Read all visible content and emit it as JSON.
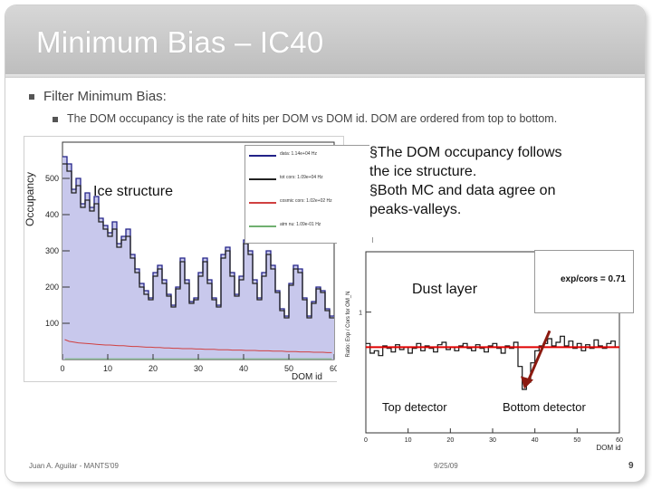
{
  "slide": {
    "title": "Minimum Bias – IC40",
    "bullet1": "Filter Minimum Bias:",
    "bullet2": "The DOM occupancy is the rate of hits per DOM vs DOM id. DOM are ordered from top to bottom.",
    "footer_left": "Juan A. Aguilar - MANTS'09",
    "footer_date": "9/25/09",
    "page_number": "9"
  },
  "annotations": {
    "note_line1": "§The DOM occupancy follows",
    "note_line2": "the ice structure.",
    "note_line3": "§Both MC and data agree on",
    "note_line4": "peaks-valleys.",
    "ice_structure": "Ice structure",
    "dust_layer": "Dust layer",
    "top_detector": "Top detector",
    "bottom_detector": "Bottom detector"
  },
  "colors": {
    "data": "#222288",
    "total_cors": "#222222",
    "cosmic": "#d04040",
    "atmo_nu": "#70b070",
    "fill": "#c8c8ec",
    "ratio_line": "#e00000",
    "arrow": "#8b1a10"
  },
  "chart_data": [
    {
      "type": "line",
      "ylabel": "Occupancy",
      "xlabel": "DOM id",
      "x_ticks": [
        0,
        10,
        20,
        30,
        40,
        50,
        60
      ],
      "y_ticks": [
        100,
        200,
        300,
        400,
        500
      ],
      "xlim": [
        0,
        60
      ],
      "ylim": [
        0,
        600
      ],
      "legend": {
        "placement": "top-right",
        "entries": [
          {
            "label": "data: 1.14e+04 Hz"
          },
          {
            "label": "tot cors: 1.09e+04 Hz"
          },
          {
            "label": "cosmic cors: 1.02e+02 Hz"
          },
          {
            "label": "atm nu: 1.09e-01 Hz"
          }
        ]
      },
      "series": [
        {
          "name": "data",
          "style": "step-filled",
          "values": [
            560,
            540,
            470,
            500,
            430,
            460,
            420,
            450,
            390,
            370,
            350,
            380,
            320,
            340,
            360,
            290,
            250,
            210,
            190,
            170,
            240,
            260,
            220,
            180,
            150,
            200,
            280,
            220,
            160,
            170,
            240,
            280,
            220,
            170,
            150,
            290,
            310,
            240,
            180,
            230,
            330,
            300,
            220,
            170,
            240,
            300,
            260,
            190,
            140,
            120,
            210,
            260,
            250,
            170,
            120,
            160,
            200,
            190,
            140,
            120
          ]
        },
        {
          "name": "tot cors",
          "style": "step",
          "values": [
            540,
            520,
            460,
            480,
            420,
            440,
            410,
            430,
            380,
            360,
            340,
            360,
            310,
            330,
            340,
            280,
            240,
            200,
            180,
            165,
            230,
            250,
            210,
            175,
            145,
            195,
            270,
            210,
            155,
            165,
            230,
            270,
            210,
            165,
            145,
            280,
            300,
            230,
            175,
            220,
            320,
            290,
            210,
            165,
            230,
            290,
            250,
            185,
            135,
            115,
            205,
            250,
            240,
            165,
            115,
            155,
            195,
            185,
            135,
            115
          ]
        },
        {
          "name": "cosmic cors",
          "style": "line",
          "values": [
            55,
            50,
            48,
            46,
            45,
            44,
            43,
            42,
            41,
            40,
            40,
            39,
            38,
            38,
            37,
            36,
            36,
            35,
            34,
            34,
            33,
            33,
            32,
            32,
            31,
            31,
            30,
            30,
            30,
            29,
            29,
            28,
            28,
            28,
            27,
            27,
            27,
            26,
            26,
            26,
            25,
            25,
            25,
            24,
            24,
            24,
            23,
            23,
            23,
            22,
            22,
            22,
            21,
            21,
            21,
            20,
            20,
            20,
            19,
            19
          ]
        },
        {
          "name": "atm nu",
          "style": "line",
          "values": [
            2,
            2,
            2,
            2,
            2,
            2,
            2,
            2,
            2,
            2,
            2,
            2,
            2,
            2,
            2,
            2,
            2,
            2,
            2,
            2,
            2,
            2,
            2,
            2,
            2,
            2,
            2,
            2,
            2,
            2,
            2,
            2,
            2,
            2,
            2,
            2,
            2,
            2,
            2,
            2,
            2,
            2,
            2,
            2,
            2,
            2,
            2,
            2,
            2,
            2,
            2,
            2,
            2,
            2,
            2,
            2,
            2,
            2,
            2,
            2
          ]
        }
      ]
    },
    {
      "type": "line",
      "ylabel": "Ratio: Exp / Cors for OM_N",
      "xlabel": "DOM id",
      "x_ticks": [
        0,
        10,
        20,
        30,
        40,
        50,
        60
      ],
      "y_ticks": [
        1
      ],
      "xlim": [
        0,
        60
      ],
      "ylim": [
        0,
        1.5
      ],
      "reference": {
        "label": "exp/cors = 0.71",
        "value": 0.71
      },
      "series": [
        {
          "name": "ratio",
          "style": "step",
          "values": [
            0.74,
            0.66,
            0.68,
            0.64,
            0.72,
            0.7,
            0.67,
            0.73,
            0.69,
            0.71,
            0.66,
            0.7,
            0.74,
            0.68,
            0.72,
            0.7,
            0.67,
            0.73,
            0.75,
            0.69,
            0.71,
            0.68,
            0.72,
            0.74,
            0.7,
            0.68,
            0.73,
            0.7,
            0.67,
            0.72,
            0.74,
            0.7,
            0.66,
            0.72,
            0.7,
            0.75,
            0.55,
            0.36,
            0.42,
            0.58,
            0.68,
            0.72,
            0.74,
            0.78,
            0.72,
            0.75,
            0.8,
            0.72,
            0.76,
            0.7,
            0.74,
            0.68,
            0.73,
            0.7,
            0.77,
            0.72,
            0.7,
            0.74,
            0.76,
            0.71
          ]
        }
      ]
    }
  ]
}
